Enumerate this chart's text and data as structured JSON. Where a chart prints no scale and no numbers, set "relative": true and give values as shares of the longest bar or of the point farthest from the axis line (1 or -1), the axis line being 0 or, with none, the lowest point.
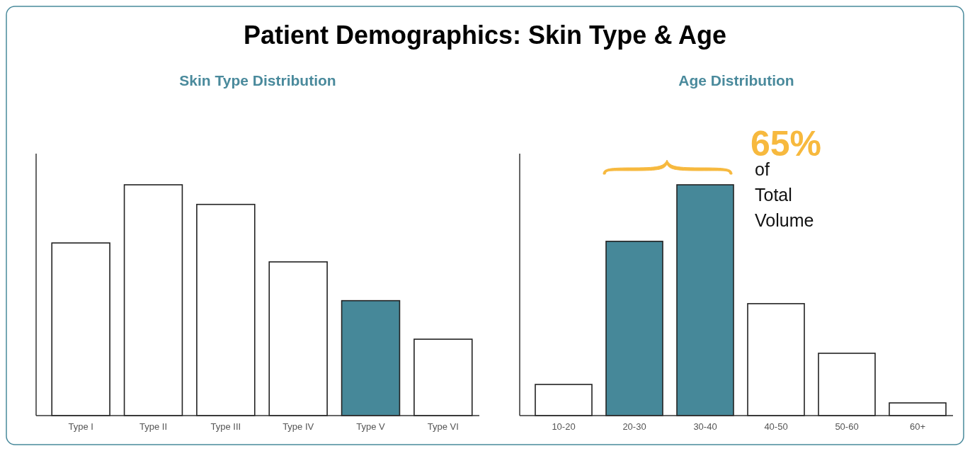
{
  "chart_data": [
    {
      "type": "bar",
      "title": "Patient Demographics: Skin Type & Age",
      "subtitle": "Skin Type Distribution",
      "relative": true,
      "categories": [
        "Type I",
        "Type II",
        "Type III",
        "Type IV",
        "Type V",
        "Type VI"
      ],
      "values": [
        0.748,
        1,
        0.915,
        0.666,
        0.498,
        0.331
      ],
      "colors": [
        "#ffffff",
        "#ffffff",
        "#ffffff",
        "#ffffff",
        "#468899",
        "#ffffff"
      ]
    },
    {
      "type": "bar",
      "subtitle": "Age Distribution",
      "relative": true,
      "categories": [
        "10-20",
        "20-30",
        "30-40",
        "40-50",
        "50-60",
        "60+"
      ],
      "values": [
        0.135,
        0.755,
        1,
        0.485,
        0.27,
        0.055
      ],
      "colors": [
        "#ffffff",
        "#468899",
        "#468899",
        "#ffffff",
        "#ffffff",
        "#ffffff"
      ],
      "annotations": [
        "65%",
        "of Total Volume"
      ]
    }
  ]
}
